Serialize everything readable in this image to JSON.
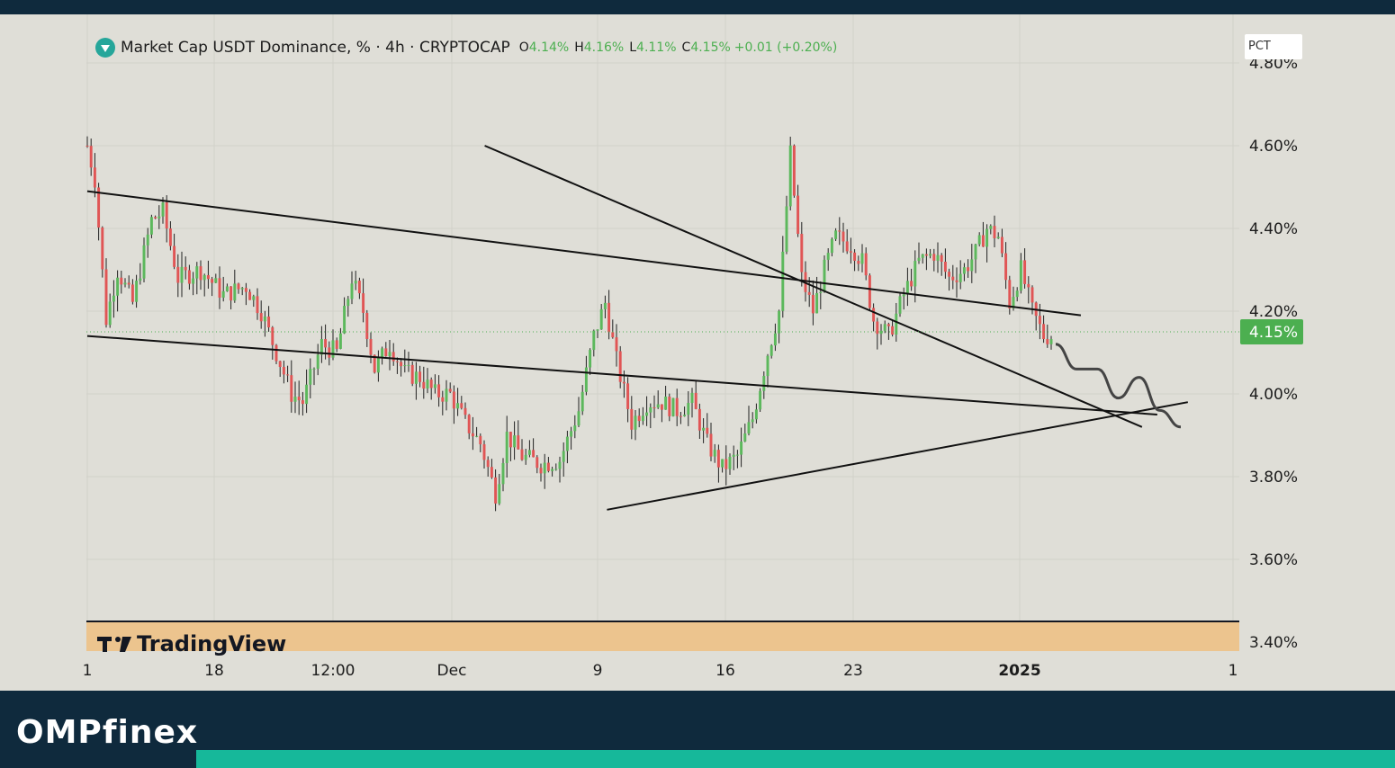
{
  "legend": {
    "title": "Market Cap USDT Dominance, % · 4h · CRYPTOCAP",
    "open_label": "O",
    "open": "4.14%",
    "high_label": "H",
    "high": "4.16%",
    "low_label": "L",
    "low": "4.11%",
    "close_label": "C",
    "close": "4.15%",
    "change": "+0.01 (+0.20%)"
  },
  "scale_button": "PCT",
  "watermark": "TradingView",
  "brand": {
    "part1": "OMP",
    "part2": "finex"
  },
  "colors": {
    "background": "#dfded7",
    "up": "#5cb85c",
    "down": "#e05555",
    "price_label": "#4caf50",
    "footer": "#0f2a3d",
    "accent": "#16b89a",
    "volume_band": "#ecc48e"
  },
  "chart_data": {
    "type": "candlestick",
    "title": "Market Cap USDT Dominance, % · 4h · CRYPTOCAP",
    "interval": "4h",
    "y_unit": "%",
    "ylim": [
      3.4,
      4.85
    ],
    "y_ticks": [
      "4.80%",
      "4.60%",
      "4.40%",
      "4.20%",
      "4.00%",
      "3.80%",
      "3.60%",
      "3.40%"
    ],
    "x_ticks": [
      "1",
      "18",
      "12:00",
      "Dec",
      "9",
      "16",
      "23",
      "2025",
      "1"
    ],
    "last_price_label": "4.15%",
    "price_path": [
      [
        0,
        4.6
      ],
      [
        2,
        4.52
      ],
      [
        5,
        4.18
      ],
      [
        8,
        4.3
      ],
      [
        12,
        4.22
      ],
      [
        17,
        4.42
      ],
      [
        20,
        4.44
      ],
      [
        24,
        4.28
      ],
      [
        30,
        4.3
      ],
      [
        36,
        4.24
      ],
      [
        42,
        4.26
      ],
      [
        46,
        4.2
      ],
      [
        50,
        4.1
      ],
      [
        54,
        4.0
      ],
      [
        57,
        3.98
      ],
      [
        62,
        4.12
      ],
      [
        66,
        4.1
      ],
      [
        70,
        4.28
      ],
      [
        73,
        4.2
      ],
      [
        76,
        4.06
      ],
      [
        80,
        4.12
      ],
      [
        84,
        4.05
      ],
      [
        88,
        4.04
      ],
      [
        92,
        4.0
      ],
      [
        96,
        4.0
      ],
      [
        100,
        3.93
      ],
      [
        104,
        3.88
      ],
      [
        108,
        3.76
      ],
      [
        111,
        3.9
      ],
      [
        115,
        3.85
      ],
      [
        120,
        3.83
      ],
      [
        125,
        3.84
      ],
      [
        130,
        3.96
      ],
      [
        134,
        4.14
      ],
      [
        137,
        4.22
      ],
      [
        140,
        4.08
      ],
      [
        144,
        3.93
      ],
      [
        148,
        3.98
      ],
      [
        152,
        3.98
      ],
      [
        156,
        3.96
      ],
      [
        160,
        3.98
      ],
      [
        164,
        3.88
      ],
      [
        168,
        3.82
      ],
      [
        172,
        3.85
      ],
      [
        176,
        3.94
      ],
      [
        180,
        4.1
      ],
      [
        183,
        4.2
      ],
      [
        186,
        4.58
      ],
      [
        189,
        4.28
      ],
      [
        192,
        4.2
      ],
      [
        195,
        4.3
      ],
      [
        198,
        4.38
      ],
      [
        202,
        4.36
      ],
      [
        205,
        4.32
      ],
      [
        208,
        4.18
      ],
      [
        212,
        4.14
      ],
      [
        216,
        4.24
      ],
      [
        220,
        4.32
      ],
      [
        224,
        4.34
      ],
      [
        228,
        4.28
      ],
      [
        232,
        4.3
      ],
      [
        235,
        4.34
      ],
      [
        238,
        4.4
      ],
      [
        241,
        4.38
      ],
      [
        244,
        4.22
      ],
      [
        247,
        4.3
      ],
      [
        250,
        4.2
      ],
      [
        253,
        4.14
      ]
    ],
    "trendlines": [
      {
        "name": "upper-descending",
        "from": [
          "2024-11-01",
          4.49
        ],
        "to": [
          "2025-01-05",
          4.19
        ]
      },
      {
        "name": "lower-from-nov-high",
        "from": [
          "2024-11-27",
          4.6
        ],
        "to": [
          "2025-01-09",
          3.92
        ]
      },
      {
        "name": "lower-ascending-support",
        "from": [
          "2024-12-05",
          3.72
        ],
        "to": [
          "2025-01-12",
          3.98
        ]
      },
      {
        "name": "lower-descending",
        "from": [
          "2024-11-01",
          4.14
        ],
        "to": [
          "2025-01-10",
          3.95
        ]
      }
    ],
    "projection": [
      [
        0,
        4.12
      ],
      [
        1,
        4.06
      ],
      [
        2,
        4.06
      ],
      [
        3,
        3.99
      ],
      [
        4,
        4.04
      ],
      [
        5,
        3.96
      ],
      [
        6,
        3.92
      ]
    ],
    "grid": true,
    "y_axis_position": "right"
  }
}
